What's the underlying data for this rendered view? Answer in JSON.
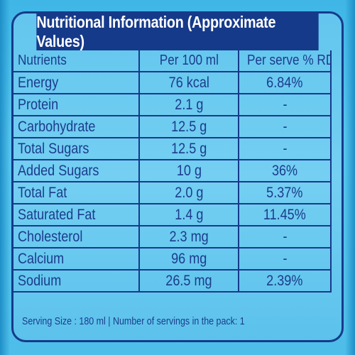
{
  "panel": {
    "title": "Nutritional Information (Approximate Values)"
  },
  "table": {
    "headers": [
      "Nutrients",
      "Per 100 ml",
      "Per serve % RDA"
    ],
    "rows": [
      {
        "nutrient": "Energy",
        "per100": "76 kcal",
        "rda": "6.84%"
      },
      {
        "nutrient": "Protein",
        "per100": "2.1 g",
        "rda": "-"
      },
      {
        "nutrient": "Carbohydrate",
        "per100": "12.5 g",
        "rda": "-"
      },
      {
        "nutrient": "Total Sugars",
        "per100": "12.5 g",
        "rda": "-"
      },
      {
        "nutrient": "Added Sugars",
        "per100": "10 g",
        "rda": "36%"
      },
      {
        "nutrient": "Total Fat",
        "per100": "2.0 g",
        "rda": "5.37%"
      },
      {
        "nutrient": "Saturated Fat",
        "per100": "1.4 g",
        "rda": "11.45%"
      },
      {
        "nutrient": "Cholesterol",
        "per100": "2.3 mg",
        "rda": "-"
      },
      {
        "nutrient": "Calcium",
        "per100": "96 mg",
        "rda": "-"
      },
      {
        "nutrient": "Sodium",
        "per100": "26.5 mg",
        "rda": "2.39%"
      }
    ]
  },
  "footer": {
    "text": "Serving  Size : 180 ml | Number of servings in the pack:  1"
  },
  "colors": {
    "border": "#163a8a",
    "text": "#1b3c8c",
    "background": "#5cc2ec",
    "header_text": "#ffffff"
  }
}
